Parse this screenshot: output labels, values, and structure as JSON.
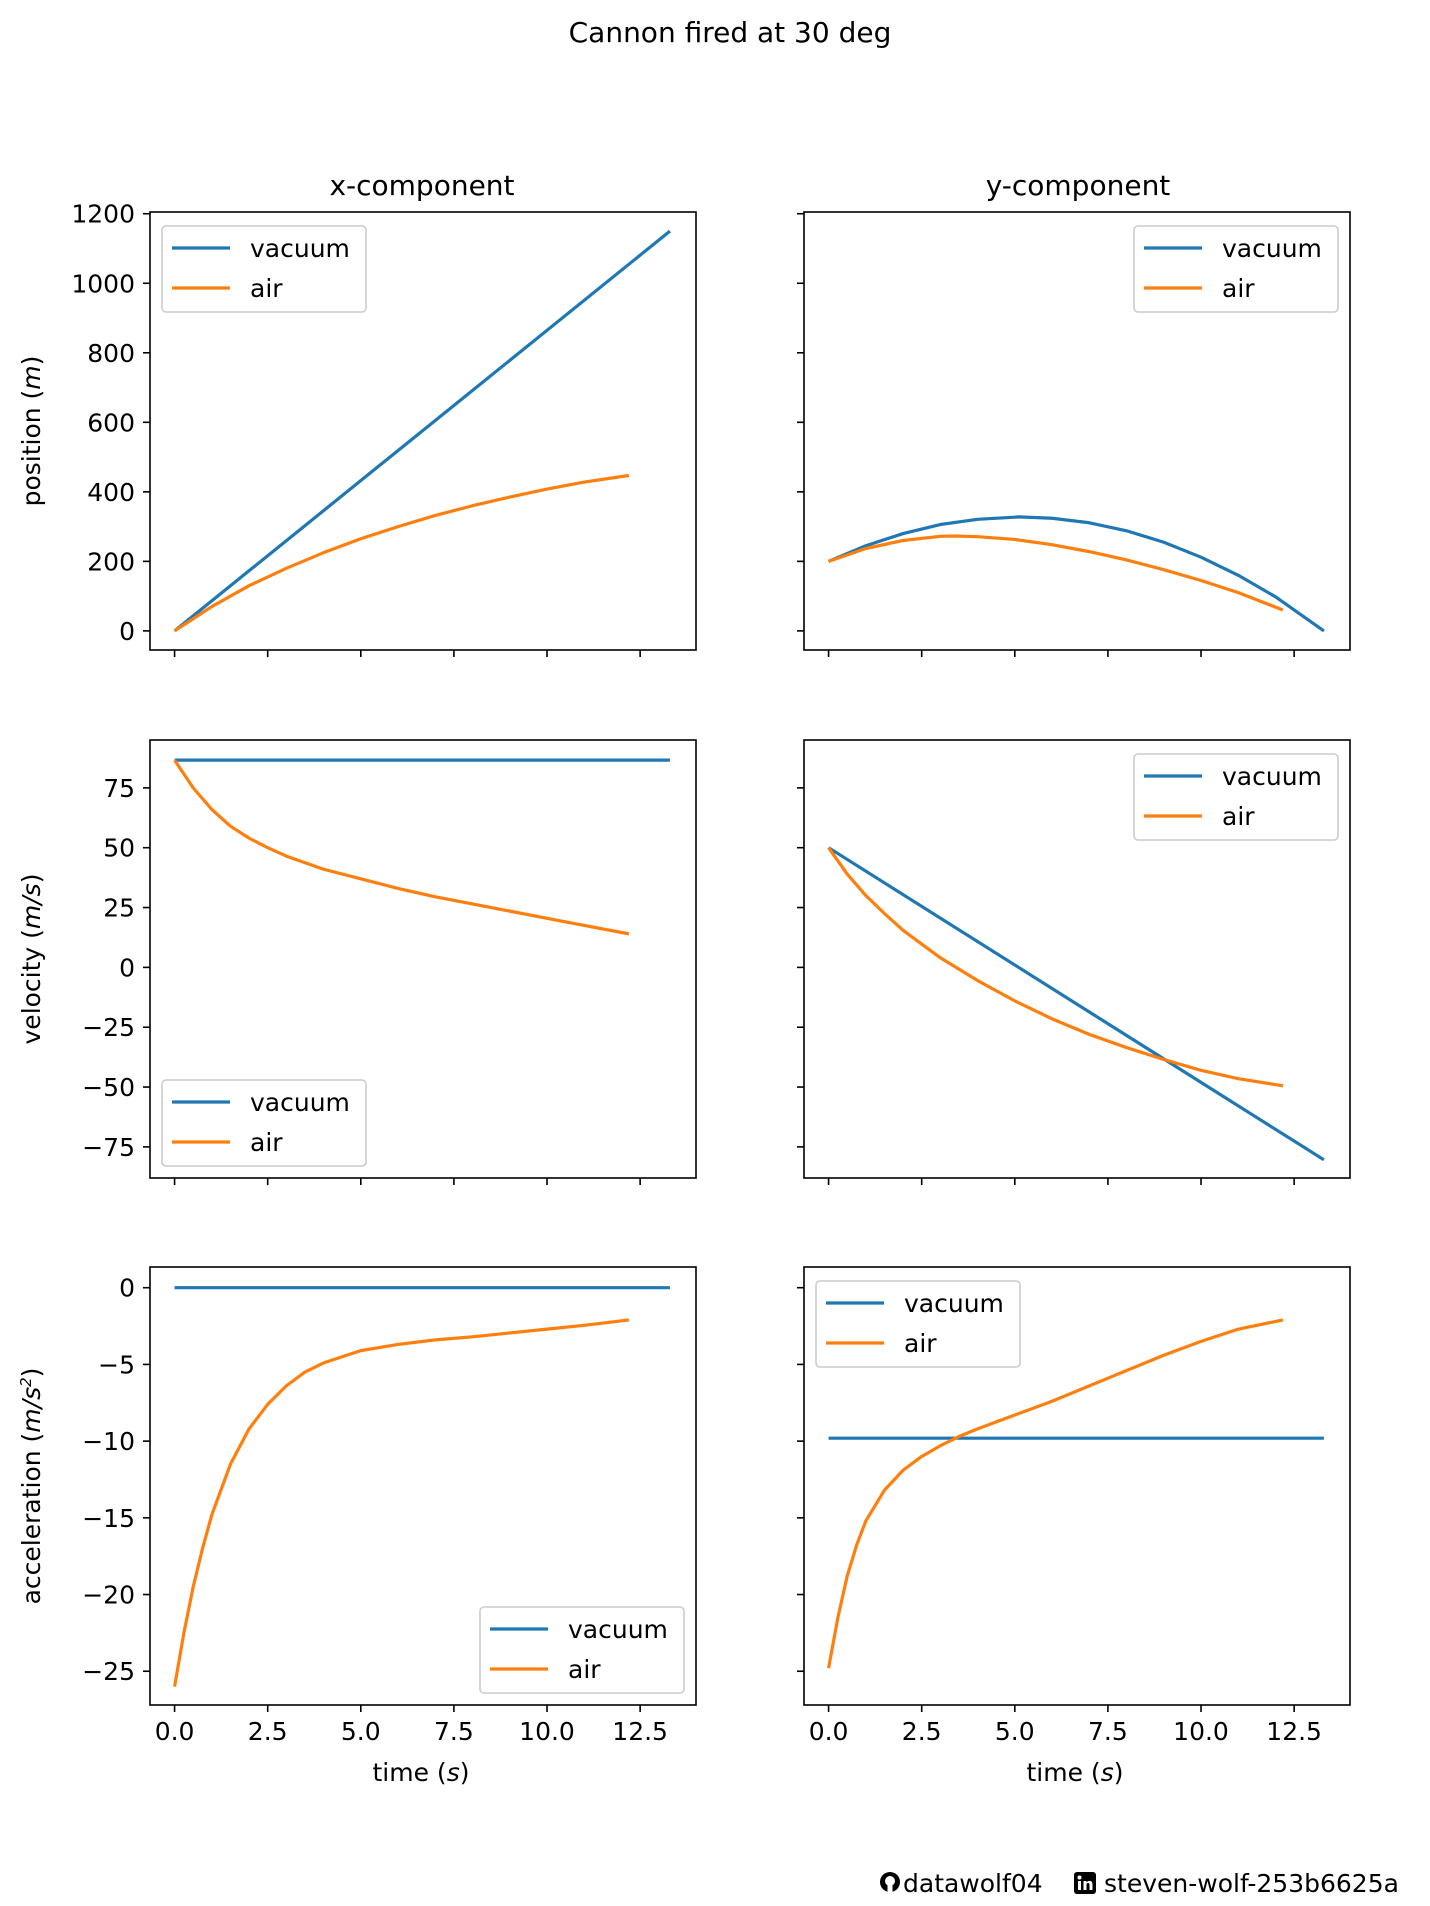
{
  "figure": {
    "title": "Cannon fired at 30 deg",
    "col_titles": [
      "x-component",
      "y-component"
    ],
    "xlabel": "time (s)",
    "ylabels": [
      "position (m)",
      "velocity (m/s)",
      "acceleration (m/s2)"
    ],
    "footer": {
      "github_user": "datawolf04",
      "linkedin_user": "steven-wolf-253b6625a"
    },
    "colors": {
      "vacuum": "#1f77b4",
      "air": "#ff7f0e"
    }
  },
  "chart_data": [
    {
      "type": "line",
      "row": 0,
      "col": 0,
      "title": "x-component",
      "xlabel": "",
      "ylabel": "position (m)",
      "xlim": [
        -0.66,
        14.0
      ],
      "ylim": [
        -55,
        1205
      ],
      "xticks": [
        0,
        2.5,
        5,
        7.5,
        10,
        12.5
      ],
      "xticklabels": [],
      "yticks": [
        0,
        200,
        400,
        600,
        800,
        1000,
        1200
      ],
      "yticklabels": [
        "0",
        "200",
        "400",
        "600",
        "800",
        "1000",
        "1200"
      ],
      "legend": "upper left",
      "series": [
        {
          "name": "vacuum",
          "x": [
            0,
            13.3
          ],
          "y": [
            0,
            1150
          ]
        },
        {
          "name": "air",
          "x": [
            0,
            1,
            2,
            3,
            4,
            5,
            6,
            7,
            8,
            9,
            10,
            11,
            12.2
          ],
          "y": [
            0,
            70,
            130,
            180,
            225,
            265,
            300,
            332,
            360,
            385,
            408,
            428,
            447
          ]
        }
      ]
    },
    {
      "type": "line",
      "row": 0,
      "col": 1,
      "title": "y-component",
      "xlabel": "",
      "ylabel": "",
      "xlim": [
        -0.66,
        14.0
      ],
      "ylim": [
        -55,
        1205
      ],
      "xticks": [
        0,
        2.5,
        5,
        7.5,
        10,
        12.5
      ],
      "xticklabels": [],
      "yticks": [
        0,
        200,
        400,
        600,
        800,
        1000,
        1200
      ],
      "yticklabels": [],
      "legend": "upper right",
      "series": [
        {
          "name": "vacuum",
          "x": [
            0,
            1,
            2,
            3,
            4,
            5,
            5.1,
            6,
            7,
            8,
            9,
            10,
            11,
            12,
            13.3
          ],
          "y": [
            200,
            245,
            280,
            306,
            321,
            327,
            328,
            324,
            311,
            288,
            255,
            212,
            160,
            98,
            0
          ]
        },
        {
          "name": "air",
          "x": [
            0,
            1,
            2,
            3,
            3.4,
            4,
            5,
            6,
            7,
            8,
            9,
            10,
            11,
            12.2
          ],
          "y": [
            200,
            237,
            260,
            272,
            273,
            271,
            263,
            248,
            228,
            204,
            176,
            145,
            110,
            60
          ]
        }
      ]
    },
    {
      "type": "line",
      "row": 1,
      "col": 0,
      "title": "",
      "xlabel": "",
      "ylabel": "velocity (m/s)",
      "xlim": [
        -0.66,
        14.0
      ],
      "ylim": [
        -88,
        95
      ],
      "xticks": [
        0,
        2.5,
        5,
        7.5,
        10,
        12.5
      ],
      "xticklabels": [],
      "yticks": [
        75,
        50,
        25,
        0,
        -25,
        -50,
        -75
      ],
      "yticklabels": [
        "75",
        "50",
        "25",
        "0",
        "−25",
        "−50",
        "−75"
      ],
      "legend": "lower left",
      "series": [
        {
          "name": "vacuum",
          "x": [
            0,
            13.3
          ],
          "y": [
            86.6,
            86.6
          ]
        },
        {
          "name": "air",
          "x": [
            0,
            0.5,
            1,
            1.5,
            2,
            2.5,
            3,
            4,
            5,
            6,
            7,
            8,
            9,
            10,
            11,
            12.2
          ],
          "y": [
            86.6,
            75,
            66,
            59,
            54,
            50,
            46.5,
            41,
            37,
            33,
            29.5,
            26.5,
            23.5,
            20.5,
            17.5,
            14
          ]
        }
      ]
    },
    {
      "type": "line",
      "row": 1,
      "col": 1,
      "title": "",
      "xlabel": "",
      "ylabel": "",
      "xlim": [
        -0.66,
        14.0
      ],
      "ylim": [
        -88,
        95
      ],
      "xticks": [
        0,
        2.5,
        5,
        7.5,
        10,
        12.5
      ],
      "xticklabels": [],
      "yticks": [
        75,
        50,
        25,
        0,
        -25,
        -50,
        -75
      ],
      "yticklabels": [],
      "legend": "upper right",
      "series": [
        {
          "name": "vacuum",
          "x": [
            0,
            13.3
          ],
          "y": [
            50,
            -80.4
          ]
        },
        {
          "name": "air",
          "x": [
            0,
            0.5,
            1,
            1.5,
            2,
            3,
            4,
            5,
            6,
            7,
            8,
            9,
            10,
            11,
            12.2
          ],
          "y": [
            50,
            39,
            30,
            22.5,
            15.5,
            4,
            -5.5,
            -14,
            -21.5,
            -28,
            -33.5,
            -38.5,
            -43,
            -46.5,
            -49.5
          ]
        }
      ]
    },
    {
      "type": "line",
      "row": 2,
      "col": 0,
      "title": "",
      "xlabel": "time (s)",
      "ylabel": "acceleration (m/s2)",
      "xlim": [
        -0.66,
        14.0
      ],
      "ylim": [
        -27.2,
        1.35
      ],
      "xticks": [
        0,
        2.5,
        5,
        7.5,
        10,
        12.5
      ],
      "xticklabels": [
        "0.0",
        "2.5",
        "5.0",
        "7.5",
        "10.0",
        "12.5"
      ],
      "yticks": [
        0,
        -5,
        -10,
        -15,
        -20,
        -25
      ],
      "yticklabels": [
        "0",
        "−5",
        "−10",
        "−15",
        "−20",
        "−25"
      ],
      "legend": "lower right",
      "series": [
        {
          "name": "vacuum",
          "x": [
            0,
            13.3
          ],
          "y": [
            0,
            0
          ]
        },
        {
          "name": "air",
          "x": [
            0,
            0.25,
            0.5,
            0.75,
            1,
            1.5,
            2,
            2.5,
            3,
            3.5,
            4,
            5,
            6,
            7,
            8,
            9,
            10,
            11,
            12.2
          ],
          "y": [
            -26,
            -22.5,
            -19.5,
            -17,
            -14.8,
            -11.5,
            -9.2,
            -7.6,
            -6.4,
            -5.5,
            -4.9,
            -4.1,
            -3.7,
            -3.4,
            -3.2,
            -2.95,
            -2.7,
            -2.45,
            -2.1
          ]
        }
      ]
    },
    {
      "type": "line",
      "row": 2,
      "col": 1,
      "title": "",
      "xlabel": "time (s)",
      "ylabel": "",
      "xlim": [
        -0.66,
        14.0
      ],
      "ylim": [
        -27.2,
        1.35
      ],
      "xticks": [
        0,
        2.5,
        5,
        7.5,
        10,
        12.5
      ],
      "xticklabels": [
        "0.0",
        "2.5",
        "5.0",
        "7.5",
        "10.0",
        "12.5"
      ],
      "yticks": [
        0,
        -5,
        -10,
        -15,
        -20,
        -25
      ],
      "yticklabels": [],
      "legend": "upper left",
      "series": [
        {
          "name": "vacuum",
          "x": [
            0,
            13.3
          ],
          "y": [
            -9.81,
            -9.81
          ]
        },
        {
          "name": "air",
          "x": [
            0,
            0.25,
            0.5,
            0.75,
            1,
            1.5,
            2,
            2.5,
            3,
            3.5,
            4,
            5,
            6,
            7,
            8,
            9,
            10,
            11,
            12.2
          ],
          "y": [
            -24.8,
            -21.5,
            -18.8,
            -16.8,
            -15.2,
            -13.2,
            -11.9,
            -11,
            -10.3,
            -9.7,
            -9.2,
            -8.3,
            -7.4,
            -6.4,
            -5.4,
            -4.4,
            -3.5,
            -2.7,
            -2.1
          ]
        }
      ]
    }
  ]
}
